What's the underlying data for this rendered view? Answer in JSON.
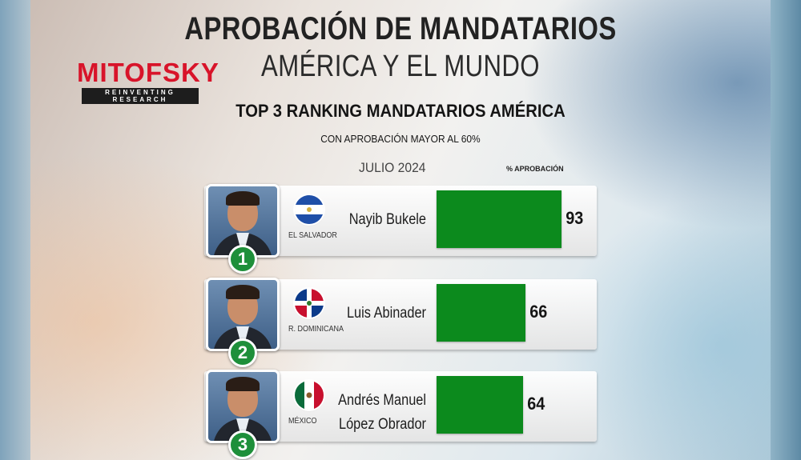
{
  "header": {
    "title_line1": "APROBACIÓN DE MANDATARIOS",
    "title_line2": "AMÉRICA Y EL MUNDO"
  },
  "logo": {
    "name": "MITOFSKY",
    "tagline": "REINVENTING RESEARCH"
  },
  "colors": {
    "bar": "#0c8a1d",
    "rank_badge": "#1e8f3a",
    "logo_red": "#d8142a"
  },
  "chart_data": {
    "type": "bar",
    "orientation": "horizontal",
    "title": "TOP 3 RANKING MANDATARIOS AMÉRICA",
    "subtitle": "CON APROBACIÓN MAYOR AL 60%",
    "period": "JULIO 2024",
    "value_label": "% APROBACIÓN",
    "xlim": [
      0,
      100
    ],
    "grid": false,
    "rows": [
      {
        "rank": "1",
        "name_line1": "Nayib Bukele",
        "name_line2": "",
        "country": "EL SALVADOR",
        "flag": "el-salvador-flag",
        "value": 93
      },
      {
        "rank": "2",
        "name_line1": "Luis Abinader",
        "name_line2": "",
        "country": "R. DOMINICANA",
        "flag": "dominican-republic-flag",
        "value": 66
      },
      {
        "rank": "3",
        "name_line1": "Andrés Manuel",
        "name_line2": "López Obrador",
        "country": "MÉXICO",
        "flag": "mexico-flag",
        "value": 64
      }
    ]
  }
}
